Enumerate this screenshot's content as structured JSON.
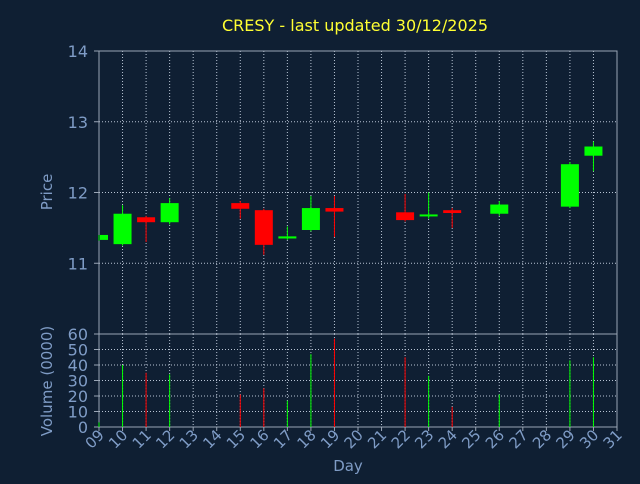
{
  "colors": {
    "background": "#0f1f33",
    "title": "#ffff33",
    "axis_text": "#7f9cc6",
    "frame": "#9aa6b6",
    "grid": "#b8c4d4",
    "up": "#00ff00",
    "down": "#ff0000"
  },
  "chart_data": [
    {
      "type": "candlestick",
      "title": "CRESY - last updated 30/12/2025",
      "ylabel": "Price",
      "ylim": [
        10.0,
        14.0
      ],
      "yticks": [
        11,
        12,
        13,
        14
      ],
      "grid": true,
      "x": [
        "09",
        "10",
        "11",
        "12",
        "15",
        "16",
        "17",
        "18",
        "19",
        "22",
        "23",
        "24",
        "26",
        "29",
        "30"
      ],
      "open": [
        11.33,
        11.27,
        11.65,
        11.58,
        11.85,
        11.75,
        11.35,
        11.47,
        11.78,
        11.72,
        11.68,
        11.75,
        11.7,
        11.8,
        12.52
      ],
      "high": [
        11.4,
        11.82,
        11.67,
        11.92,
        11.88,
        11.77,
        11.52,
        11.95,
        11.95,
        11.98,
        12.0,
        11.78,
        11.88,
        12.43,
        12.72
      ],
      "low": [
        11.32,
        11.25,
        11.3,
        11.55,
        11.63,
        11.12,
        11.33,
        11.45,
        11.37,
        11.59,
        11.63,
        11.5,
        11.67,
        11.78,
        12.3
      ],
      "close": [
        11.4,
        11.7,
        11.58,
        11.85,
        11.77,
        11.26,
        11.38,
        11.78,
        11.73,
        11.61,
        11.69,
        11.71,
        11.83,
        12.4,
        12.65
      ]
    },
    {
      "type": "bar",
      "ylabel": "Volume (0000)",
      "xlabel": "Day",
      "ylim": [
        0,
        60
      ],
      "yticks": [
        0,
        10,
        20,
        30,
        40,
        50,
        60
      ],
      "x_axis_ticks": [
        "09",
        "10",
        "11",
        "12",
        "13",
        "14",
        "15",
        "16",
        "17",
        "18",
        "19",
        "20",
        "21",
        "22",
        "23",
        "24",
        "25",
        "26",
        "27",
        "28",
        "29",
        "30",
        "31"
      ],
      "x": [
        "09",
        "10",
        "11",
        "12",
        "15",
        "16",
        "17",
        "18",
        "19",
        "22",
        "23",
        "24",
        "26",
        "29",
        "30"
      ],
      "values": [
        3,
        40,
        35,
        34,
        21,
        25,
        17,
        47,
        57,
        45,
        33,
        13,
        21,
        43,
        45
      ],
      "direction": [
        "up",
        "up",
        "down",
        "up",
        "down",
        "down",
        "up",
        "up",
        "down",
        "down",
        "up",
        "down",
        "up",
        "up",
        "up"
      ]
    }
  ]
}
